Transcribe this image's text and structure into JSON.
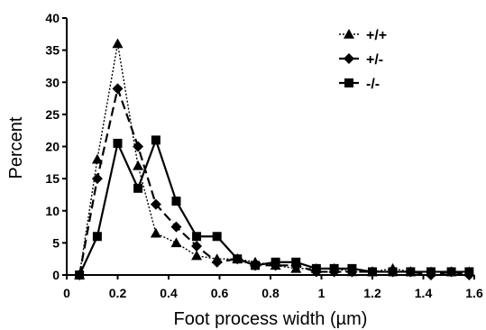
{
  "chart_data": {
    "type": "line",
    "title": "",
    "xlabel": "Foot process width (µm)",
    "ylabel": "Percent",
    "xlim": [
      0,
      1.6
    ],
    "ylim": [
      0,
      40
    ],
    "xticks": [
      0,
      0.2,
      0.4,
      0.6,
      0.8,
      1,
      1.2,
      1.4,
      1.6
    ],
    "xtick_labels": [
      "0",
      "0.2",
      "0.4",
      "0.6",
      "0.8",
      "1",
      "1.2",
      "1.4",
      "1.6"
    ],
    "yticks": [
      0,
      5,
      10,
      15,
      20,
      25,
      30,
      35,
      40
    ],
    "ytick_labels": [
      "0",
      "5",
      "10",
      "15",
      "20",
      "25",
      "30",
      "35",
      "40"
    ],
    "grid": false,
    "legend_position": "top-right",
    "series": [
      {
        "name": "+/+",
        "marker": "triangle",
        "line_style": "dotted",
        "color": "#000000",
        "x": [
          0.05,
          0.12,
          0.2,
          0.28,
          0.35,
          0.43,
          0.51,
          0.59,
          0.67,
          0.74,
          0.82,
          0.9,
          0.98,
          1.05,
          1.12,
          1.2,
          1.28,
          1.35,
          1.43,
          1.51,
          1.58
        ],
        "y": [
          0,
          18,
          36,
          17,
          6.5,
          5,
          3,
          2.5,
          2.5,
          2,
          1.5,
          1,
          1,
          1,
          0.5,
          0.5,
          1,
          0.5,
          0.5,
          0.5,
          0.5
        ]
      },
      {
        "name": "+/-",
        "marker": "diamond",
        "line_style": "dashed",
        "color": "#000000",
        "x": [
          0.05,
          0.12,
          0.2,
          0.28,
          0.35,
          0.43,
          0.51,
          0.59,
          0.67,
          0.74,
          0.82,
          0.9,
          0.98,
          1.05,
          1.12,
          1.2,
          1.28,
          1.35,
          1.43,
          1.51,
          1.58
        ],
        "y": [
          0,
          15,
          29,
          20,
          11,
          7.5,
          4.5,
          2,
          2.5,
          1.5,
          1.5,
          1.5,
          0.5,
          0.5,
          0.5,
          0.5,
          0.5,
          0.5,
          0,
          0.5,
          0
        ]
      },
      {
        "name": "-/-",
        "marker": "square",
        "line_style": "solid",
        "color": "#000000",
        "x": [
          0.05,
          0.12,
          0.2,
          0.28,
          0.35,
          0.43,
          0.51,
          0.59,
          0.67,
          0.74,
          0.82,
          0.9,
          0.98,
          1.05,
          1.12,
          1.2,
          1.28,
          1.35,
          1.43,
          1.51,
          1.58
        ],
        "y": [
          0,
          6,
          20.5,
          13.5,
          21,
          11.5,
          6,
          6,
          2.5,
          1.5,
          2,
          2,
          1,
          1,
          1,
          0.5,
          0.5,
          0.5,
          0.5,
          0.5,
          0.5
        ]
      }
    ]
  }
}
